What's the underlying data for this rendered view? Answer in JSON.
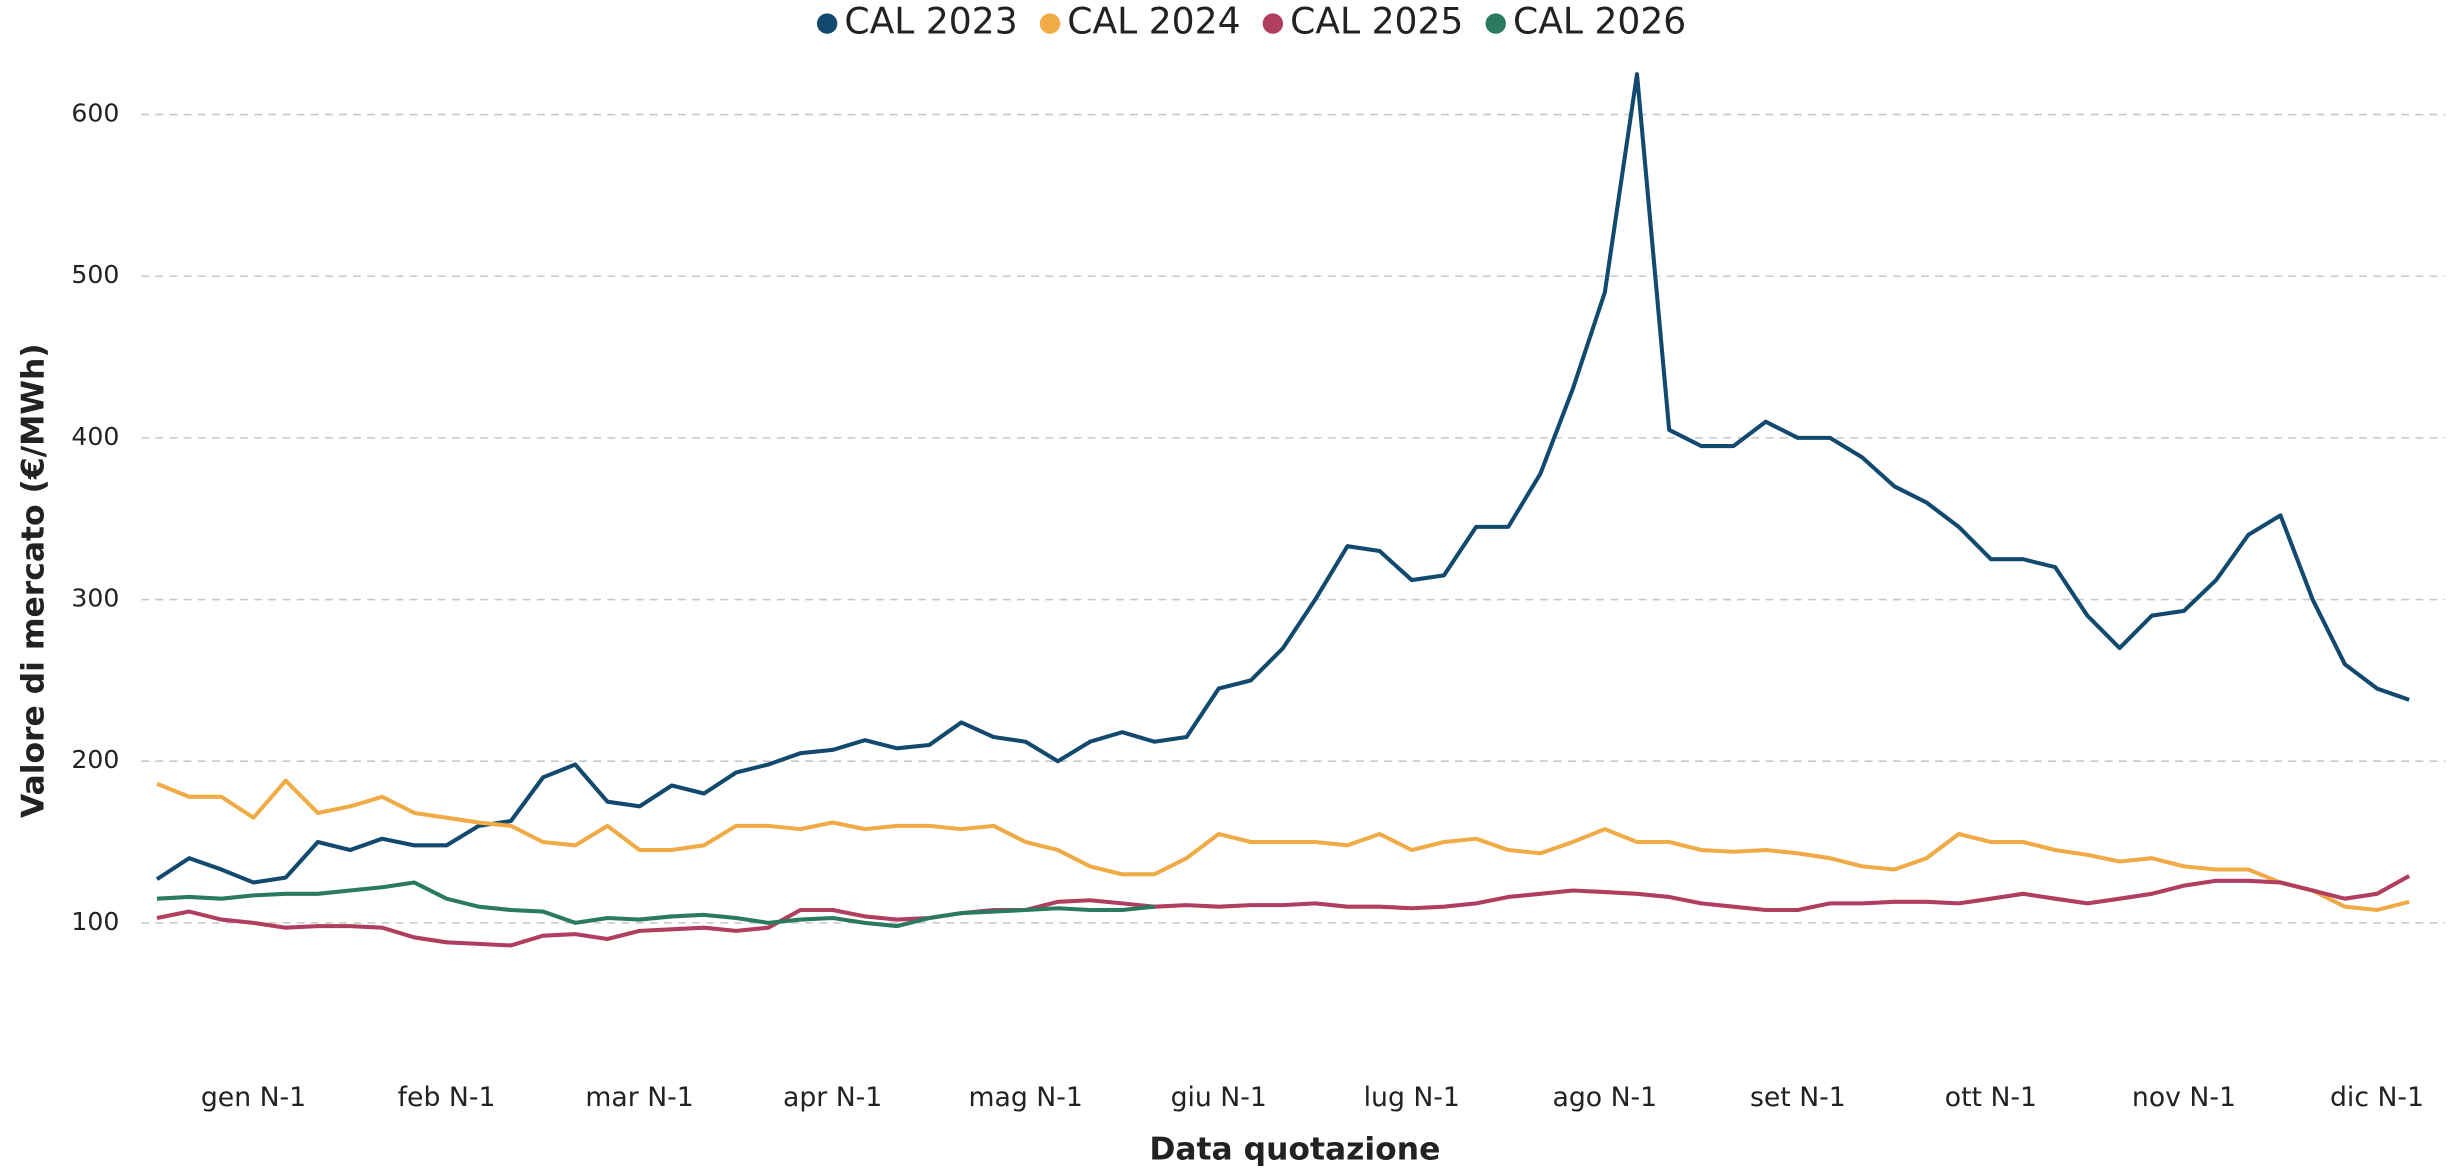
{
  "chart_data": {
    "type": "line",
    "xlabel": "Data quotazione",
    "ylabel": "Valore di mercato (€/MWh)",
    "categories": [
      null,
      null,
      null,
      "gen N-1",
      null,
      null,
      null,
      null,
      null,
      "feb N-1",
      null,
      null,
      null,
      null,
      null,
      "mar N-1",
      null,
      null,
      null,
      null,
      null,
      "apr N-1",
      null,
      null,
      null,
      null,
      null,
      "mag N-1",
      null,
      null,
      null,
      null,
      null,
      "giu N-1",
      null,
      null,
      null,
      null,
      null,
      "lug N-1",
      null,
      null,
      null,
      null,
      null,
      "ago N-1",
      null,
      null,
      null,
      null,
      null,
      "set N-1",
      null,
      null,
      null,
      null,
      null,
      "ott N-1",
      null,
      null,
      null,
      null,
      null,
      "nov N-1",
      null,
      null,
      null,
      null,
      null,
      "dic N-1",
      null
    ],
    "series": [
      {
        "name": "CAL 2023",
        "color": "#124a6f",
        "values": [
          127,
          140,
          133,
          125,
          128,
          150,
          145,
          152,
          148,
          148,
          160,
          163,
          190,
          198,
          175,
          172,
          185,
          180,
          193,
          198,
          205,
          207,
          213,
          208,
          210,
          224,
          215,
          212,
          200,
          212,
          218,
          212,
          215,
          245,
          250,
          270,
          300,
          333,
          330,
          312,
          315,
          345,
          345,
          378,
          430,
          490,
          625,
          405,
          395,
          395,
          410,
          400,
          400,
          388,
          370,
          360,
          345,
          325,
          325,
          320,
          290,
          270,
          290,
          293,
          312,
          340,
          352,
          300,
          260,
          245,
          238
        ]
      },
      {
        "name": "CAL 2024",
        "color": "#f0ab46",
        "values": [
          186,
          178,
          178,
          165,
          188,
          168,
          172,
          178,
          168,
          165,
          162,
          160,
          150,
          148,
          160,
          145,
          145,
          148,
          160,
          160,
          158,
          162,
          158,
          160,
          160,
          158,
          160,
          150,
          145,
          135,
          130,
          130,
          140,
          155,
          150,
          150,
          150,
          148,
          155,
          145,
          150,
          152,
          145,
          143,
          150,
          158,
          150,
          150,
          145,
          144,
          145,
          143,
          140,
          135,
          133,
          140,
          155,
          150,
          150,
          145,
          142,
          138,
          140,
          135,
          133,
          133,
          125,
          120,
          110,
          108,
          113
        ]
      },
      {
        "name": "CAL 2025",
        "color": "#b03e5e",
        "values": [
          103,
          107,
          102,
          100,
          97,
          98,
          98,
          97,
          91,
          88,
          87,
          86,
          92,
          93,
          90,
          95,
          96,
          97,
          95,
          97,
          108,
          108,
          104,
          102,
          103,
          106,
          108,
          108,
          113,
          114,
          112,
          110,
          111,
          110,
          111,
          111,
          112,
          110,
          110,
          109,
          110,
          112,
          116,
          118,
          120,
          119,
          118,
          116,
          112,
          110,
          108,
          108,
          112,
          112,
          113,
          113,
          112,
          115,
          118,
          115,
          112,
          115,
          118,
          123,
          126,
          126,
          125,
          120,
          115,
          118,
          129
        ]
      },
      {
        "name": "CAL 2026",
        "color": "#2a7a5e",
        "values": [
          115,
          116,
          115,
          117,
          118,
          118,
          120,
          122,
          125,
          115,
          110,
          108,
          107,
          100,
          103,
          102,
          104,
          105,
          103,
          100,
          102,
          103,
          100,
          98,
          103,
          106,
          107,
          108,
          109,
          108,
          108,
          110,
          null,
          null,
          null,
          null,
          null,
          null,
          null,
          null,
          null,
          null,
          null,
          null,
          null,
          null,
          null,
          null,
          null,
          null,
          null,
          null,
          null,
          null,
          null,
          null,
          null,
          null,
          null,
          null,
          null,
          null,
          null,
          null,
          null,
          null,
          null,
          null,
          null,
          null,
          null
        ]
      }
    ],
    "ylim": [
      30,
      630
    ],
    "yticks": [
      100,
      200,
      300,
      400,
      500,
      600
    ],
    "grid": true,
    "legend": "top"
  }
}
